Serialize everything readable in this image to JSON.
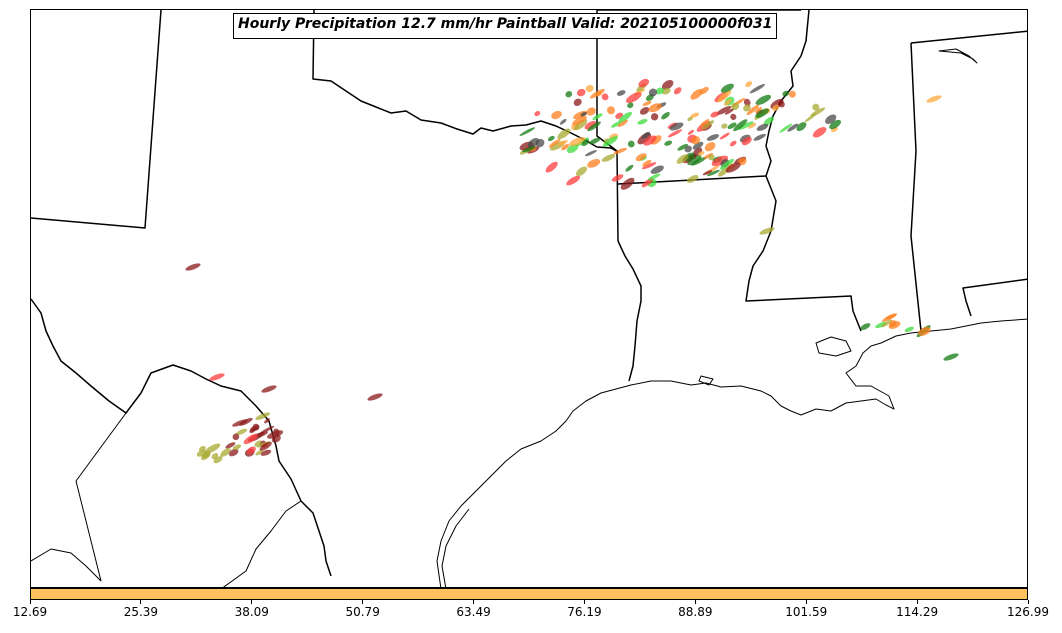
{
  "title": "Hourly Precipitation 12.7 mm/hr Paintball Valid: 202105100000f031",
  "colorbar": {
    "color": "#ffc060",
    "ticks": [
      "12.69",
      "25.39",
      "38.09",
      "50.79",
      "63.49",
      "76.19",
      "88.89",
      "101.59",
      "114.29",
      "126.99"
    ]
  },
  "member_colors": [
    "#ff3b3b",
    "#ff7f1e",
    "#ffa83c",
    "#3cdc3c",
    "#127a12",
    "#a8a830",
    "#8b1a1a",
    "#4a4a4a"
  ]
}
